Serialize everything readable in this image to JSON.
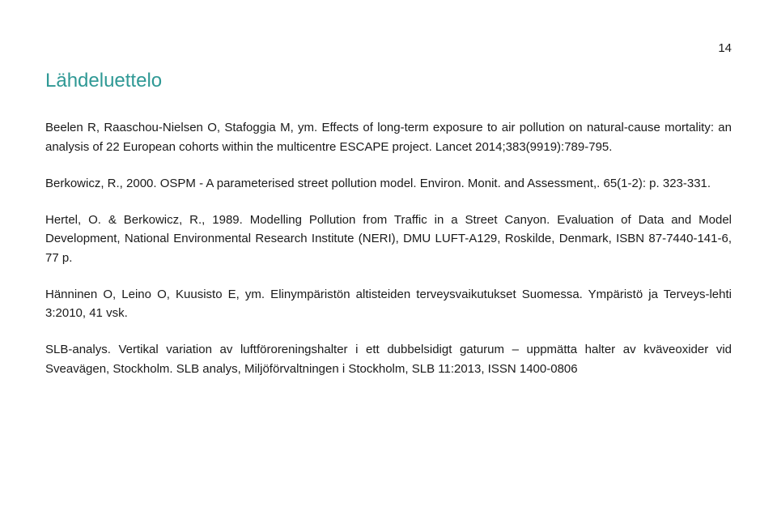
{
  "page_number": "14",
  "heading": "Lähdeluettelo",
  "heading_color": "#2f9995",
  "text_color": "#1a1a1a",
  "background_color": "#ffffff",
  "heading_fontsize": 24,
  "body_fontsize": 15,
  "references": [
    "Beelen R, Raaschou-Nielsen O, Stafoggia M, ym. Effects of long-term exposure to air pollution on natural-cause mortality: an analysis of 22 European cohorts within the multicentre ESCAPE project. Lancet 2014;383(9919):789-795.",
    "Berkowicz, R., 2000. OSPM - A parameterised street pollution model. Environ. Monit. and Assessment,. 65(1-2): p. 323-331.",
    "Hertel, O. & Berkowicz, R., 1989. Modelling Pollution from Traffic in a Street Canyon. Evaluation of Data and Model Development, National Environmental Research Institute (NERI), DMU LUFT-A129, Roskilde, Denmark, ISBN 87-7440-141-6, 77 p.",
    "Hänninen O, Leino O, Kuusisto E, ym. Elinympäristön altisteiden terveysvaikutukset Suomessa. Ympäristö ja Terveys-lehti 3:2010, 41 vsk.",
    "SLB-analys. Vertikal variation av luftföroreningshalter i ett dubbelsidigt gaturum – uppmätta halter av kväveoxider vid Sveavägen, Stockholm. SLB analys, Miljöförvaltningen i Stockholm, SLB 11:2013, ISSN 1400-0806"
  ]
}
